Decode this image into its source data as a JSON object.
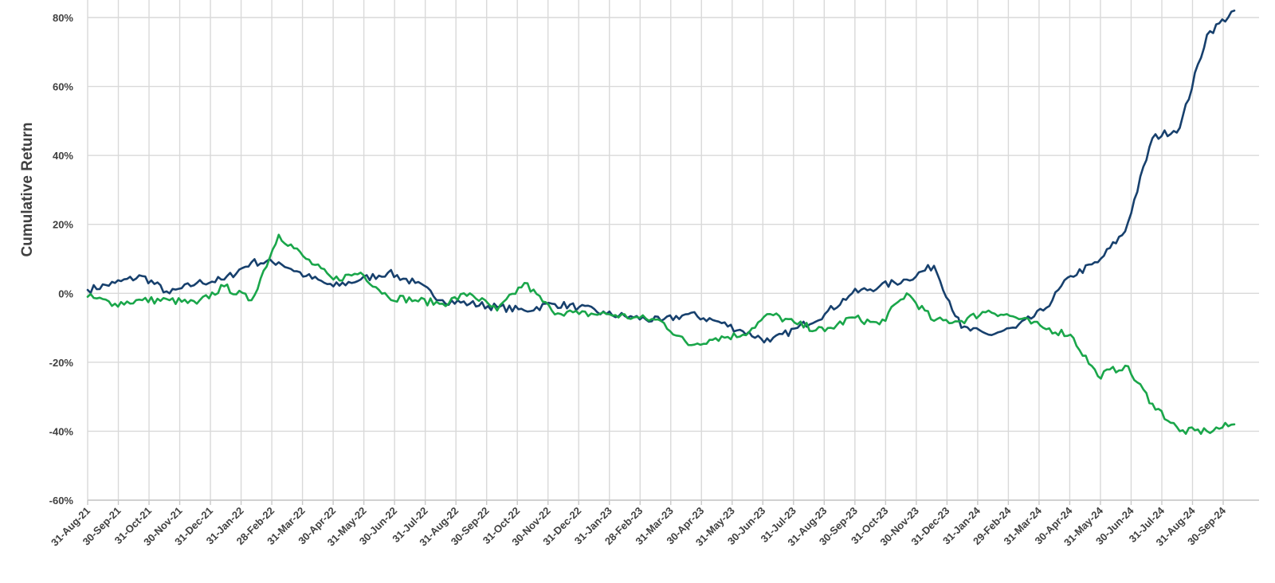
{
  "chart_data": {
    "type": "line",
    "title": "",
    "xlabel": "",
    "ylabel": "Cumulative Return",
    "ylim": [
      -0.6,
      0.8
    ],
    "y_ticks": [
      {
        "value": 0.8,
        "label": "80%"
      },
      {
        "value": 0.6,
        "label": "60%"
      },
      {
        "value": 0.4,
        "label": "40%"
      },
      {
        "value": 0.2,
        "label": "20%"
      },
      {
        "value": 0.0,
        "label": "0%"
      },
      {
        "value": -0.2,
        "label": "-20%"
      },
      {
        "value": -0.4,
        "label": "-40%"
      },
      {
        "value": -0.6,
        "label": "-60%"
      }
    ],
    "x_ticks": [
      "31-Aug-21",
      "30-Sep-21",
      "31-Oct-21",
      "30-Nov-21",
      "31-Dec-21",
      "31-Jan-22",
      "28-Feb-22",
      "31-Mar-22",
      "30-Apr-22",
      "31-May-22",
      "30-Jun-22",
      "31-Jul-22",
      "31-Aug-22",
      "30-Sep-22",
      "31-Oct-22",
      "30-Nov-22",
      "31-Dec-22",
      "31-Jan-23",
      "28-Feb-23",
      "31-Mar-23",
      "30-Apr-23",
      "31-May-23",
      "30-Jun-23",
      "31-Jul-23",
      "31-Aug-23",
      "30-Sep-23",
      "31-Oct-23",
      "30-Nov-23",
      "31-Dec-23",
      "31-Jan-24",
      "29-Feb-24",
      "31-Mar-24",
      "30-Apr-24",
      "31-May-24",
      "30-Jun-24",
      "31-Jul-24",
      "31-Aug-24",
      "30-Sep-24"
    ],
    "grid": true,
    "legend": "none",
    "series": [
      {
        "color": "#17406d",
        "values": [
          0.01,
          0.03,
          0.05,
          0.0,
          0.03,
          0.04,
          0.09,
          0.09,
          0.05,
          0.02,
          0.04,
          0.06,
          0.03,
          -0.02,
          -0.03,
          -0.04,
          -0.05,
          -0.03,
          -0.04,
          -0.06,
          -0.07,
          -0.08,
          -0.06,
          -0.08,
          -0.11,
          -0.14,
          -0.1,
          -0.06,
          0.0,
          0.02,
          0.04,
          0.08,
          -0.1,
          -0.12,
          -0.1,
          -0.05,
          0.05,
          0.09,
          0.18,
          0.45,
          0.48,
          0.75,
          0.82
        ]
      },
      {
        "color": "#1aa64a",
        "values": [
          -0.01,
          -0.03,
          -0.02,
          -0.02,
          -0.03,
          0.02,
          -0.02,
          0.17,
          0.1,
          0.04,
          0.06,
          -0.01,
          -0.02,
          -0.03,
          0.0,
          -0.05,
          0.03,
          -0.05,
          -0.06,
          -0.06,
          -0.07,
          -0.08,
          -0.15,
          -0.13,
          -0.12,
          -0.06,
          -0.09,
          -0.11,
          -0.07,
          -0.09,
          0.0,
          -0.08,
          -0.08,
          -0.05,
          -0.07,
          -0.1,
          -0.12,
          -0.24,
          -0.21,
          -0.32,
          -0.4,
          -0.4,
          -0.38
        ]
      }
    ]
  }
}
